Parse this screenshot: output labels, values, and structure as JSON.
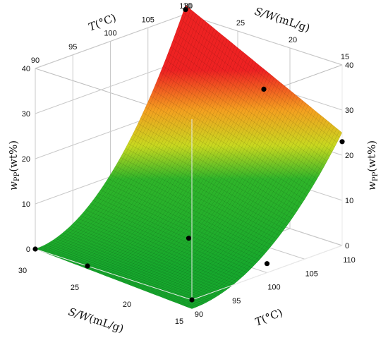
{
  "chart_data": {
    "type": "surface3d",
    "surface_colormap": [
      "#17a82d",
      "#c8d820",
      "#f4a020",
      "#ee2222"
    ],
    "axes": {
      "x": {
        "name": "S/W",
        "unit": "(mL/g)",
        "range": [
          15,
          30
        ],
        "ticks": [
          15,
          20,
          25,
          30
        ]
      },
      "y": {
        "name": "T",
        "unit": "(°C)",
        "range": [
          90,
          110
        ],
        "ticks": [
          90,
          95,
          100,
          105,
          110
        ]
      },
      "z": {
        "name": "w",
        "subscript": "PP",
        "unit": "(wt%)",
        "range": [
          0,
          40
        ],
        "ticks": [
          0,
          10,
          20,
          30,
          40
        ]
      }
    },
    "surface_samples": [
      {
        "sw": 30,
        "t": 90,
        "w": 0
      },
      {
        "sw": 20,
        "t": 90,
        "w": -1
      },
      {
        "sw": 15,
        "t": 90,
        "w": -2
      },
      {
        "sw": 30,
        "t": 110,
        "w": 40
      },
      {
        "sw": 15,
        "t": 110,
        "w": 25
      },
      {
        "sw": 30,
        "t": 100,
        "w": 13
      },
      {
        "sw": 15,
        "t": 100,
        "w": 6
      }
    ],
    "experimental_points": [
      {
        "sw": 30,
        "t": 90,
        "w": 0
      },
      {
        "sw": 25,
        "t": 90,
        "w": 0
      },
      {
        "sw": 15,
        "t": 90,
        "w": 0
      },
      {
        "sw": 22.5,
        "t": 100,
        "w": 2
      },
      {
        "sw": 22.5,
        "t": 110,
        "w": 29
      },
      {
        "sw": 15,
        "t": 110,
        "w": 23
      },
      {
        "sw": 30,
        "t": 110,
        "w": 41
      },
      {
        "sw": 15,
        "t": 100,
        "w": 2
      }
    ]
  }
}
